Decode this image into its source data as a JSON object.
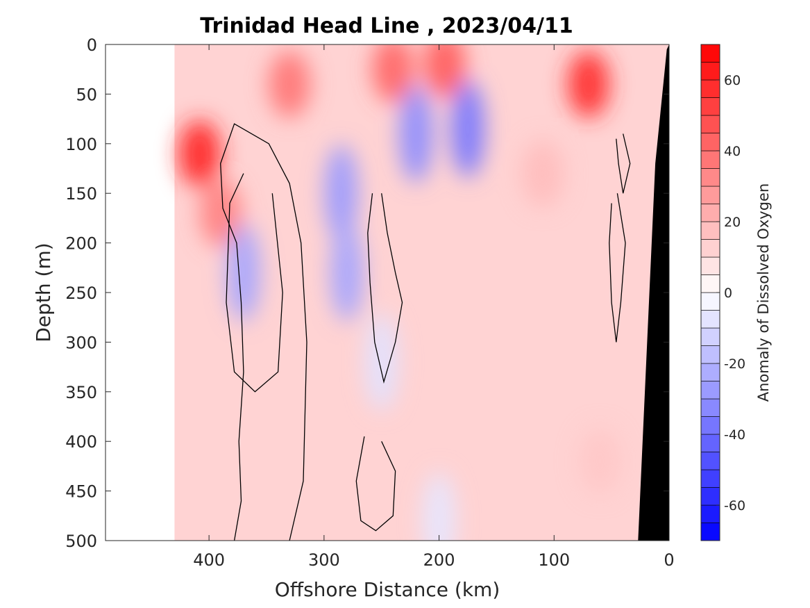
{
  "chart_data": {
    "type": "heatmap",
    "title": "Trinidad Head Line , 2023/04/11",
    "xlabel": "Offshore Distance (km)",
    "ylabel": "Depth (m)",
    "xlim": [
      490,
      0
    ],
    "ylim": [
      0,
      500
    ],
    "x_reversed": true,
    "y_reversed": true,
    "x_ticks": [
      400,
      300,
      200,
      100,
      0
    ],
    "y_ticks": [
      0,
      50,
      100,
      150,
      200,
      250,
      300,
      350,
      400,
      450,
      500
    ],
    "grid": false,
    "colorbar": {
      "label": "Anomaly of Dissolved Oxygen",
      "range": [
        -70,
        70
      ],
      "step": 5,
      "ticks": [
        -60,
        -40,
        -20,
        0,
        20,
        40,
        60
      ],
      "negative_color": "#0000ff",
      "positive_color": "#ff0000",
      "neutral_color": "#ffffff"
    },
    "data_x_range": [
      430,
      0
    ],
    "bathymetry_color": "#000000",
    "zero_contour_color": "#000000",
    "features": [
      {
        "kind": "max",
        "x": 408,
        "depth": 110,
        "value": 60
      },
      {
        "kind": "max",
        "x": 390,
        "depth": 170,
        "value": 35
      },
      {
        "kind": "max",
        "x": 330,
        "depth": 40,
        "value": 38
      },
      {
        "kind": "max",
        "x": 240,
        "depth": 25,
        "value": 42
      },
      {
        "kind": "max",
        "x": 195,
        "depth": 20,
        "value": 45
      },
      {
        "kind": "max",
        "x": 70,
        "depth": 40,
        "value": 58
      },
      {
        "kind": "max",
        "x": 110,
        "depth": 130,
        "value": 18
      },
      {
        "kind": "max",
        "x": 60,
        "depth": 420,
        "value": 15
      },
      {
        "kind": "min",
        "x": 370,
        "depth": 230,
        "value": -25
      },
      {
        "kind": "min",
        "x": 285,
        "depth": 150,
        "value": -28
      },
      {
        "kind": "min",
        "x": 280,
        "depth": 230,
        "value": -25
      },
      {
        "kind": "min",
        "x": 175,
        "depth": 85,
        "value": -38
      },
      {
        "kind": "min",
        "x": 220,
        "depth": 90,
        "value": -32
      },
      {
        "kind": "min",
        "x": 250,
        "depth": 320,
        "value": -8
      },
      {
        "kind": "min",
        "x": 200,
        "depth": 480,
        "value": -7
      }
    ]
  }
}
